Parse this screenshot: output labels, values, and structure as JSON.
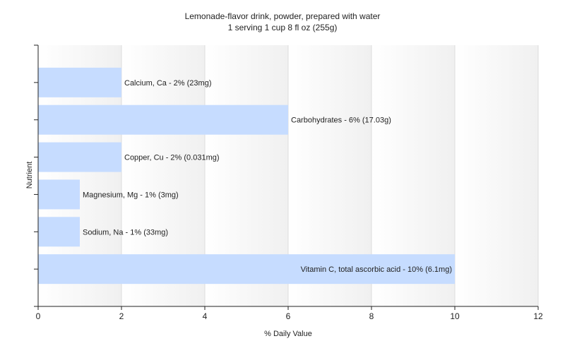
{
  "chart_data": {
    "type": "bar",
    "orientation": "horizontal",
    "title": "Lemonade-flavor drink, powder, prepared with water",
    "subtitle": "1 serving 1 cup 8 fl oz (255g)",
    "xlabel": "% Daily Value",
    "ylabel": "Nutrient",
    "xlim": [
      0,
      12
    ],
    "xticks": [
      "0",
      "2",
      "4",
      "6",
      "8",
      "10",
      "12"
    ],
    "grid": true,
    "bar_color": "#c6dcff",
    "categories": [
      "Calcium, Ca",
      "Carbohydrates",
      "Copper, Cu",
      "Magnesium, Mg",
      "Sodium, Na",
      "Vitamin C, total ascorbic acid"
    ],
    "values": [
      2,
      6,
      2,
      1,
      1,
      10
    ],
    "data_labels": [
      "Calcium, Ca - 2% (23mg)",
      "Carbohydrates - 6% (17.03g)",
      "Copper, Cu - 2% (0.031mg)",
      "Magnesium, Mg - 1% (3mg)",
      "Sodium, Na - 1% (33mg)",
      "Vitamin C, total ascorbic acid - 10% (6.1mg)"
    ]
  }
}
